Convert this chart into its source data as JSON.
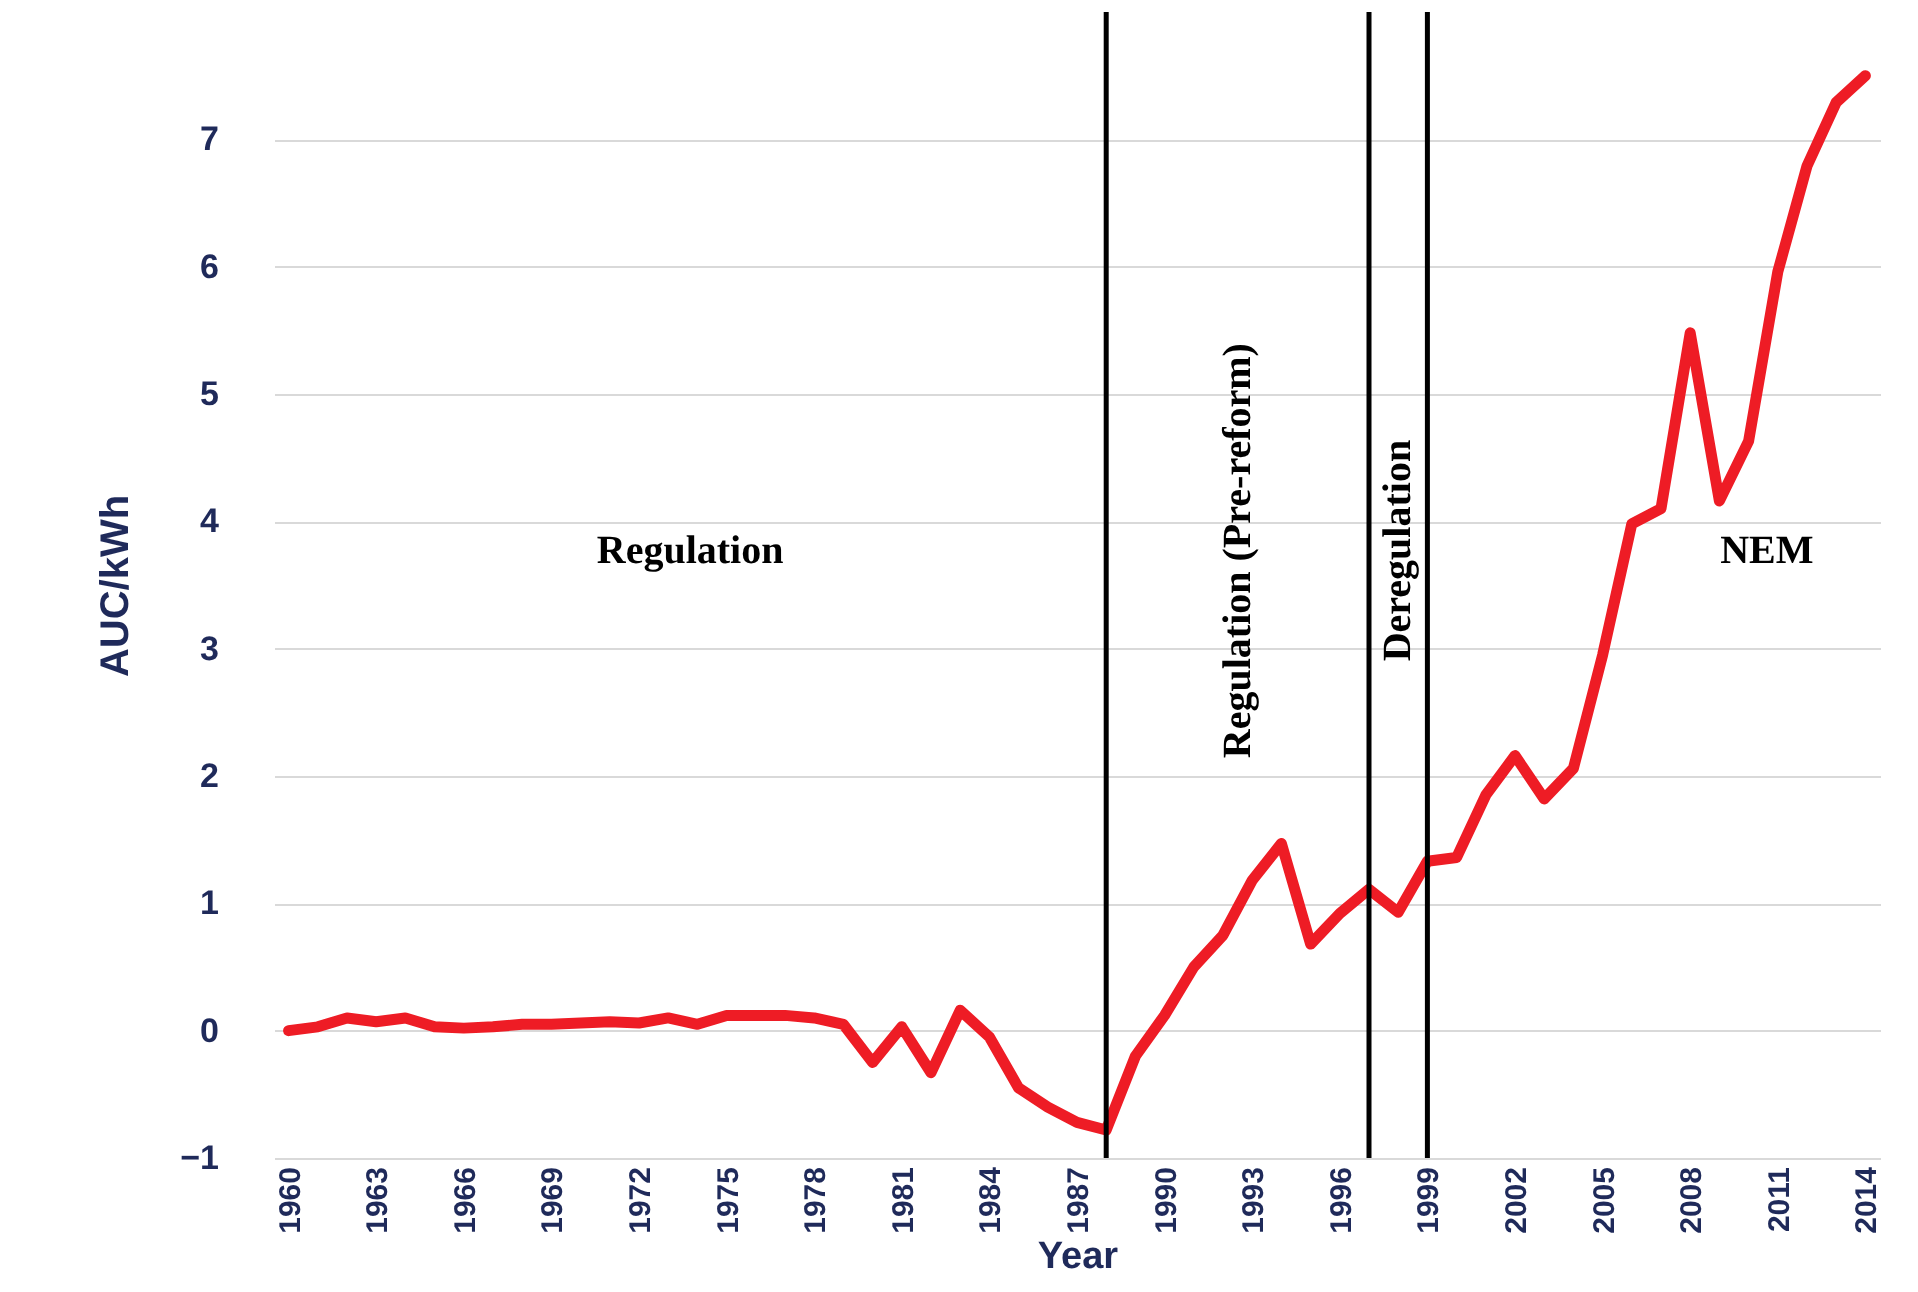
{
  "chart_data": {
    "type": "line",
    "xlabel": "Year",
    "ylabel": "AUC/kWh",
    "x": [
      1960,
      1961,
      1962,
      1963,
      1964,
      1965,
      1966,
      1967,
      1968,
      1969,
      1970,
      1971,
      1972,
      1973,
      1974,
      1975,
      1976,
      1977,
      1978,
      1979,
      1980,
      1981,
      1982,
      1983,
      1984,
      1985,
      1986,
      1987,
      1988,
      1989,
      1990,
      1991,
      1992,
      1993,
      1994,
      1995,
      1996,
      1997,
      1998,
      1999,
      2000,
      2001,
      2002,
      2003,
      2004,
      2005,
      2006,
      2007,
      2008,
      2009,
      2010,
      2011,
      2012,
      2013,
      2014
    ],
    "series": [
      {
        "color": "#ee1c25",
        "values": [
          0.0,
          0.03,
          0.1,
          0.07,
          0.1,
          0.03,
          0.02,
          0.03,
          0.05,
          0.05,
          0.06,
          0.07,
          0.06,
          0.1,
          0.05,
          0.12,
          0.12,
          0.12,
          0.1,
          0.05,
          -0.25,
          0.03,
          -0.33,
          0.16,
          -0.05,
          -0.45,
          -0.6,
          -0.72,
          -0.78,
          -0.2,
          0.12,
          0.5,
          0.75,
          1.18,
          1.47,
          0.68,
          0.92,
          1.11,
          0.93,
          1.33,
          1.36,
          1.85,
          2.16,
          1.82,
          2.06,
          2.95,
          3.98,
          4.1,
          5.48,
          4.16,
          4.63,
          5.96,
          6.79,
          7.29,
          7.5
        ]
      }
    ],
    "xlim": [
      1959.5,
      2014.5
    ],
    "xticks": [
      1960,
      1963,
      1966,
      1969,
      1972,
      1975,
      1978,
      1981,
      1984,
      1987,
      1990,
      1993,
      1996,
      1999,
      2002,
      2005,
      2008,
      2011,
      2014
    ],
    "ylim": [
      -1,
      8
    ],
    "yticks": [
      -1,
      0,
      1,
      2,
      3,
      4,
      5,
      6,
      7
    ],
    "grid": "y",
    "marker": "none",
    "line_style": "solid",
    "ref_lines": [
      {
        "axis": "x",
        "value": 1988,
        "color": "#000000"
      },
      {
        "axis": "x",
        "value": 1997,
        "color": "#000000"
      },
      {
        "axis": "x",
        "value": 1999,
        "color": "#000000"
      }
    ],
    "annotations": [
      "Regulation",
      "Regulation (Pre-reform)",
      "Deregulation",
      "NEM"
    ]
  }
}
